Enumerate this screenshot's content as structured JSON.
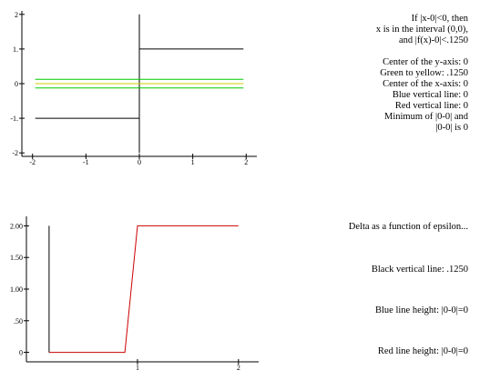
{
  "chart_data": [
    {
      "type": "line",
      "title": "",
      "xlim": [
        -2.2,
        2.2
      ],
      "ylim": [
        -2.1,
        2.1
      ],
      "x_ticks": [
        -2,
        -1,
        0,
        1,
        2
      ],
      "x_tick_labels": [
        "-2",
        "-1",
        "0",
        "1",
        "2"
      ],
      "y_ticks": [
        2,
        1,
        0,
        -1,
        -2
      ],
      "y_tick_labels": [
        "2",
        "1.",
        "0",
        "-1.",
        "-2"
      ],
      "series": [
        {
          "color": "#000000",
          "points": [
            [
              -1.95,
              -1
            ],
            [
              0,
              -1
            ]
          ]
        },
        {
          "color": "#000000",
          "points": [
            [
              0,
              1
            ],
            [
              1.95,
              1
            ]
          ]
        },
        {
          "color": "#000000",
          "points": [
            [
              0,
              -2
            ],
            [
              0,
              2
            ]
          ]
        },
        {
          "color": "#00cc00",
          "points": [
            [
              -1.95,
              0.125
            ],
            [
              1.95,
              0.125
            ]
          ]
        },
        {
          "color": "#cccc00",
          "points": [
            [
              -1.95,
              0
            ],
            [
              1.95,
              0
            ]
          ]
        },
        {
          "color": "#00cc00",
          "points": [
            [
              -1.95,
              -0.125
            ],
            [
              1.95,
              -0.125
            ]
          ]
        }
      ],
      "annotations": [
        "If |x-0|<0, then",
        "x is in the interval (0,0),",
        "and |f(x)-0|<.1250",
        "",
        "Center of the y-axis:  0",
        "Green to yellow:  .1250",
        "Center of the x-axis: 0",
        "Blue vertical line:  0",
        "Red vertical line:  0",
        "Minimum of |0-0| and",
        "|0-0| is  0"
      ]
    },
    {
      "type": "line",
      "title": "Delta as a function of epsilon...",
      "xlim": [
        -0.1,
        2.2
      ],
      "ylim": [
        -0.15,
        2.15
      ],
      "x_ticks": [
        1,
        2
      ],
      "x_tick_labels": [
        "1",
        "2"
      ],
      "y_ticks": [
        2,
        1.5,
        1,
        0.5,
        0
      ],
      "y_tick_labels": [
        "2.00",
        "1.50",
        "1.00",
        ".50",
        "0"
      ],
      "series": [
        {
          "color": "#cc0000",
          "points": [
            [
              0.125,
              0
            ],
            [
              0.875,
              0
            ],
            [
              1,
              2
            ],
            [
              2,
              2
            ]
          ]
        },
        {
          "color": "#000000",
          "points": [
            [
              0.125,
              0
            ],
            [
              0.125,
              2
            ]
          ]
        }
      ],
      "annotations": [
        "Delta as a function of epsilon...",
        "Black vertical line:  .1250",
        "Blue line height:  |0-0|=0",
        "Red line height:  |0-0|=0"
      ]
    }
  ]
}
